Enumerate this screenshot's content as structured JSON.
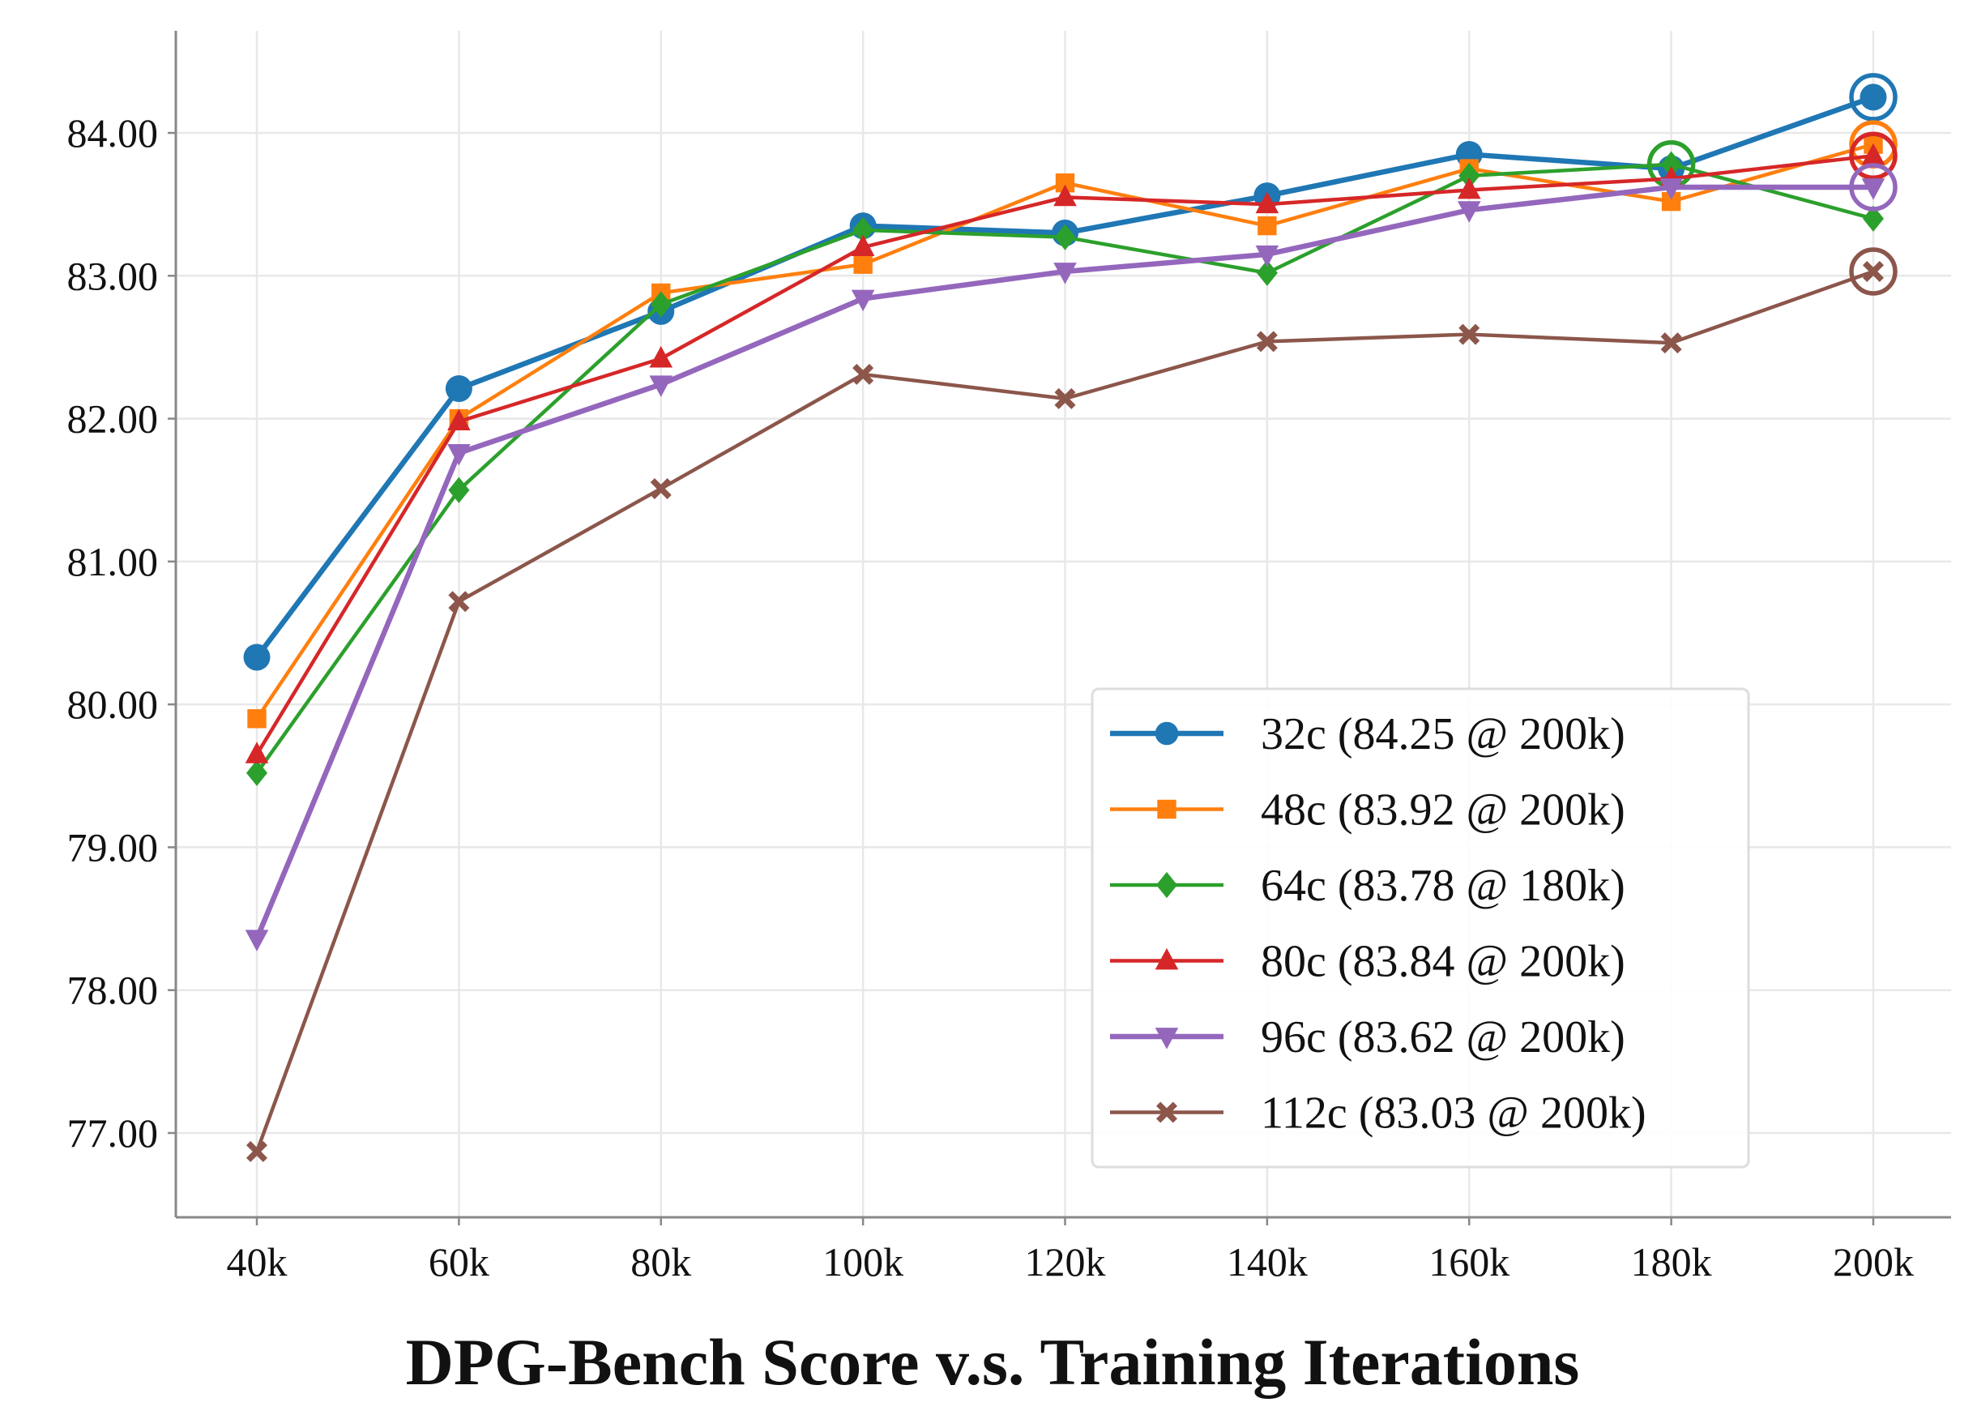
{
  "chart_data": {
    "type": "line",
    "title": "DPG-Bench Score v.s. Training Iterations",
    "xlabel": "",
    "ylabel": "",
    "x": [
      "40k",
      "60k",
      "80k",
      "100k",
      "120k",
      "140k",
      "160k",
      "180k",
      "200k"
    ],
    "ylim": [
      76.4,
      84.7
    ],
    "yticks": [
      77,
      78,
      79,
      80,
      81,
      82,
      83,
      84
    ],
    "ytick_labels": [
      "77.00",
      "78.00",
      "79.00",
      "80.00",
      "81.00",
      "82.00",
      "83.00",
      "84.00"
    ],
    "grid": true,
    "legend_position": "lower-right",
    "series": [
      {
        "name": "32c",
        "legend_label": "32c (84.25 @ 200k)",
        "color": "#1f77b4",
        "marker": "circle",
        "values": [
          80.33,
          82.21,
          82.75,
          83.35,
          83.3,
          83.56,
          83.85,
          83.75,
          84.25
        ],
        "best_index": 8
      },
      {
        "name": "48c",
        "legend_label": "48c (83.92 @ 200k)",
        "color": "#ff7f0e",
        "marker": "square",
        "values": [
          79.9,
          82.0,
          82.88,
          83.08,
          83.65,
          83.35,
          83.75,
          83.52,
          83.92
        ],
        "best_index": 8
      },
      {
        "name": "64c",
        "legend_label": "64c (83.78 @ 180k)",
        "color": "#2ca02c",
        "marker": "diamond",
        "values": [
          79.52,
          81.5,
          82.8,
          83.32,
          83.27,
          83.02,
          83.7,
          83.78,
          83.4
        ],
        "best_index": 7
      },
      {
        "name": "80c",
        "legend_label": "80c (83.84 @ 200k)",
        "color": "#d62728",
        "marker": "triangle-up",
        "values": [
          79.65,
          81.98,
          82.42,
          83.2,
          83.55,
          83.5,
          83.6,
          83.68,
          83.84
        ],
        "best_index": 8
      },
      {
        "name": "96c",
        "legend_label": "96c (83.62 @ 200k)",
        "color": "#9467bd",
        "marker": "triangle-down",
        "values": [
          78.36,
          81.76,
          82.24,
          82.84,
          83.03,
          83.15,
          83.46,
          83.62,
          83.62
        ],
        "best_index": 8
      },
      {
        "name": "112c",
        "legend_label": "112c (83.03 @ 200k)",
        "color": "#8c564b",
        "marker": "x",
        "values": [
          76.87,
          80.72,
          81.51,
          82.31,
          82.14,
          82.54,
          82.59,
          82.53,
          83.03
        ],
        "best_index": 8
      }
    ]
  }
}
